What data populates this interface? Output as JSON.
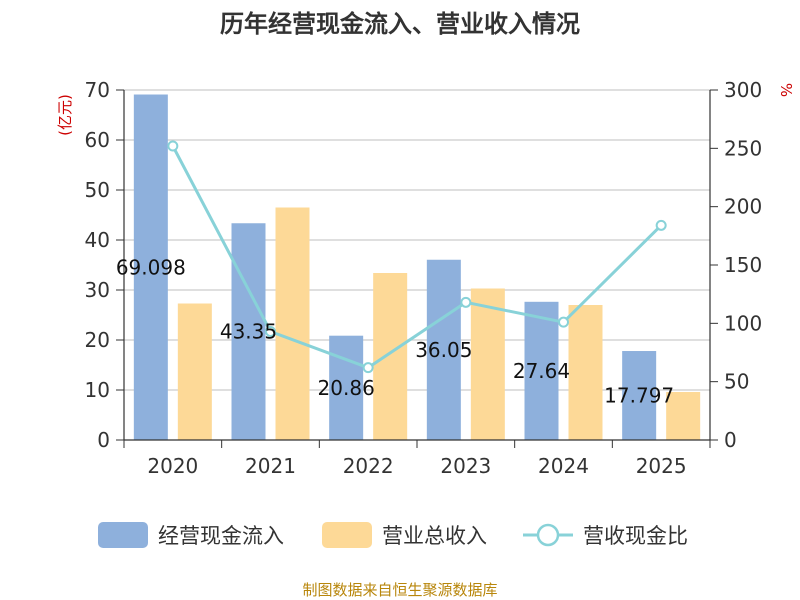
{
  "chart_data": {
    "type": "bar",
    "title": "历年经营现金流入、营业收入情况",
    "categories": [
      "2020",
      "2021",
      "2022",
      "2023",
      "2024",
      "2025"
    ],
    "series": [
      {
        "name": "经营现金流入",
        "kind": "bar",
        "axis": "left",
        "color": "#8eb0dc",
        "values": [
          69.098,
          43.35,
          20.86,
          36.05,
          27.64,
          17.797
        ],
        "labels": [
          "69.098",
          "43.35",
          "20.86",
          "36.05",
          "27.64",
          "17.797"
        ]
      },
      {
        "name": "营业总收入",
        "kind": "bar",
        "axis": "left",
        "color": "#fdd997",
        "values": [
          27.3,
          46.5,
          33.4,
          30.3,
          27.0,
          9.6
        ]
      },
      {
        "name": "营收现金比",
        "kind": "line",
        "axis": "right",
        "color": "#88d2d8",
        "values": [
          252,
          93,
          62,
          118,
          101,
          184
        ]
      }
    ],
    "y_left": {
      "label": "(亿元)",
      "min": 0,
      "max": 70,
      "ticks": [
        "0",
        "10",
        "20",
        "30",
        "40",
        "50",
        "60",
        "70"
      ]
    },
    "y_right": {
      "label": "%",
      "min": 0,
      "max": 300,
      "ticks": [
        "0",
        "50",
        "100",
        "150",
        "200",
        "250",
        "300"
      ]
    },
    "grid": true,
    "legend_position": "bottom"
  },
  "source": "制图数据来自恒生聚源数据库"
}
